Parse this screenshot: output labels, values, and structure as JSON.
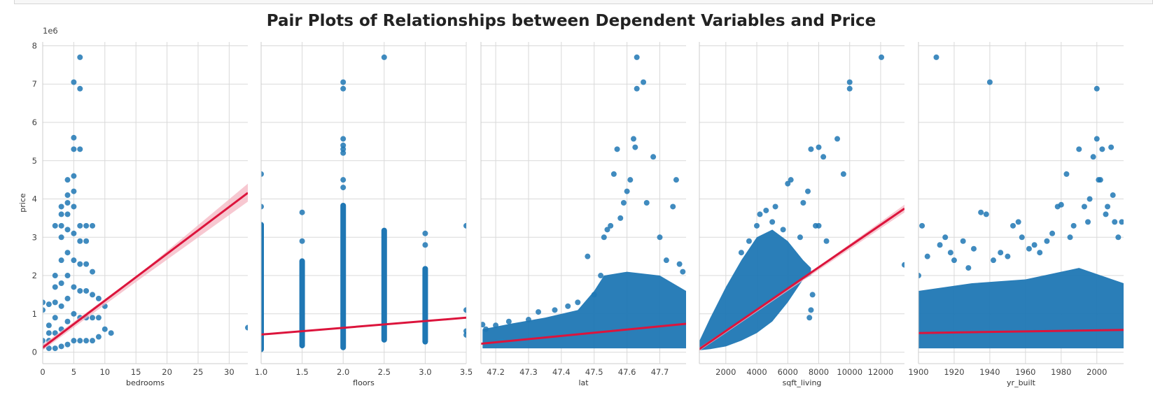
{
  "figure": {
    "title": "Pair Plots of Relationships between Dependent Variables and Price"
  },
  "colors": {
    "points": "#1f77b4",
    "regression_line": "#dc143c",
    "confidence_band": "#f4b6c2",
    "grid": "#d9d9d9",
    "background": "#ffffff"
  },
  "chart_data": [
    {
      "type": "scatter",
      "xlabel": "bedrooms",
      "ylabel": "price",
      "y_offset_label": "1e6",
      "xlim": [
        0,
        33
      ],
      "ylim": [
        -0.3,
        8.1
      ],
      "xticks": [
        0,
        5,
        10,
        15,
        20,
        25,
        30
      ],
      "xtick_labels": [
        "0",
        "5",
        "10",
        "15",
        "20",
        "25",
        "30"
      ],
      "yticks": [
        0,
        1,
        2,
        3,
        4,
        5,
        6,
        7,
        8
      ],
      "ytick_labels": [
        "0",
        "1",
        "2",
        "3",
        "4",
        "5",
        "6",
        "7",
        "8"
      ],
      "grid": true,
      "points": [
        [
          0,
          0.15
        ],
        [
          0,
          0.3
        ],
        [
          0,
          1.1
        ],
        [
          0,
          1.3
        ],
        [
          1,
          0.1
        ],
        [
          1,
          0.3
        ],
        [
          1,
          0.5
        ],
        [
          1,
          0.7
        ],
        [
          1,
          1.25
        ],
        [
          2,
          0.1
        ],
        [
          2,
          0.5
        ],
        [
          2,
          0.9
        ],
        [
          2,
          1.3
        ],
        [
          2,
          1.7
        ],
        [
          2,
          2.0
        ],
        [
          2,
          3.3
        ],
        [
          3,
          0.15
        ],
        [
          3,
          0.6
        ],
        [
          3,
          1.2
        ],
        [
          3,
          1.8
        ],
        [
          3,
          2.4
        ],
        [
          3,
          3.0
        ],
        [
          3,
          3.3
        ],
        [
          3,
          3.6
        ],
        [
          3,
          3.8
        ],
        [
          4,
          0.2
        ],
        [
          4,
          0.8
        ],
        [
          4,
          1.4
        ],
        [
          4,
          2.0
        ],
        [
          4,
          2.6
        ],
        [
          4,
          3.2
        ],
        [
          4,
          3.6
        ],
        [
          4,
          3.9
        ],
        [
          4,
          4.1
        ],
        [
          4,
          4.5
        ],
        [
          5,
          0.3
        ],
        [
          5,
          1.0
        ],
        [
          5,
          1.7
        ],
        [
          5,
          2.4
        ],
        [
          5,
          3.1
        ],
        [
          5,
          3.8
        ],
        [
          5,
          4.2
        ],
        [
          5,
          4.6
        ],
        [
          5,
          5.3
        ],
        [
          5,
          5.6
        ],
        [
          5,
          7.05
        ],
        [
          6,
          0.3
        ],
        [
          6,
          0.9
        ],
        [
          6,
          1.6
        ],
        [
          6,
          2.3
        ],
        [
          6,
          2.9
        ],
        [
          6,
          3.3
        ],
        [
          6,
          5.3
        ],
        [
          6,
          6.88
        ],
        [
          6,
          7.7
        ],
        [
          7,
          0.3
        ],
        [
          7,
          0.9
        ],
        [
          7,
          1.6
        ],
        [
          7,
          2.3
        ],
        [
          7,
          2.9
        ],
        [
          7,
          3.3
        ],
        [
          8,
          0.3
        ],
        [
          8,
          0.9
        ],
        [
          8,
          1.5
        ],
        [
          8,
          2.1
        ],
        [
          8,
          3.3
        ],
        [
          9,
          0.4
        ],
        [
          9,
          0.9
        ],
        [
          9,
          1.4
        ],
        [
          10,
          0.6
        ],
        [
          10,
          1.2
        ],
        [
          11,
          0.5
        ],
        [
          33,
          0.64
        ]
      ],
      "regression": {
        "x": [
          0,
          33
        ],
        "y": [
          0.12,
          4.16
        ]
      },
      "confidence_band": {
        "x": [
          0,
          16,
          33
        ],
        "y_low": [
          0.05,
          1.95,
          3.93
        ],
        "y_high": [
          0.2,
          2.1,
          4.4
        ]
      }
    },
    {
      "type": "scatter",
      "xlabel": "floors",
      "ylabel": "",
      "xlim": [
        1.0,
        3.5
      ],
      "ylim": [
        -0.3,
        8.1
      ],
      "xticks": [
        1.0,
        1.5,
        2.0,
        2.5,
        3.0,
        3.5
      ],
      "xtick_labels": [
        "1.0",
        "1.5",
        "2.0",
        "2.5",
        "3.0",
        "3.5"
      ],
      "yticks": [
        0,
        1,
        2,
        3,
        4,
        5,
        6,
        7,
        8
      ],
      "grid": true,
      "strips": [
        {
          "x": 1.0,
          "y_min": 0.0,
          "y_max": 3.4
        },
        {
          "x": 1.5,
          "y_min": 0.1,
          "y_max": 2.45
        },
        {
          "x": 2.0,
          "y_min": 0.05,
          "y_max": 3.9
        },
        {
          "x": 2.5,
          "y_min": 0.25,
          "y_max": 3.25
        },
        {
          "x": 3.0,
          "y_min": 0.2,
          "y_max": 2.25
        }
      ],
      "points": [
        [
          1.0,
          3.8
        ],
        [
          1.0,
          4.65
        ],
        [
          1.5,
          2.9
        ],
        [
          1.5,
          3.65
        ],
        [
          2.0,
          4.3
        ],
        [
          2.0,
          4.5
        ],
        [
          2.0,
          5.2
        ],
        [
          2.0,
          5.3
        ],
        [
          2.0,
          5.4
        ],
        [
          2.0,
          5.57
        ],
        [
          2.0,
          6.88
        ],
        [
          2.0,
          7.05
        ],
        [
          2.5,
          7.7
        ],
        [
          3.0,
          2.8
        ],
        [
          3.0,
          3.1
        ],
        [
          3.5,
          0.45
        ],
        [
          3.5,
          0.55
        ],
        [
          3.5,
          1.1
        ],
        [
          3.5,
          3.3
        ]
      ],
      "regression": {
        "x": [
          1.0,
          3.5
        ],
        "y": [
          0.46,
          0.9
        ]
      }
    },
    {
      "type": "scatter",
      "xlabel": "lat",
      "ylabel": "",
      "xlim": [
        47.155,
        47.78
      ],
      "ylim": [
        -0.3,
        8.1
      ],
      "xticks": [
        47.2,
        47.3,
        47.4,
        47.5,
        47.6,
        47.7
      ],
      "xtick_labels": [
        "47.2",
        "47.3",
        "47.4",
        "47.5",
        "47.6",
        "47.7"
      ],
      "yticks": [
        0,
        1,
        2,
        3,
        4,
        5,
        6,
        7,
        8
      ],
      "grid": true,
      "dense_band": [
        [
          47.16,
          0.1,
          0.6
        ],
        [
          47.25,
          0.1,
          0.75
        ],
        [
          47.35,
          0.1,
          0.9
        ],
        [
          47.45,
          0.1,
          1.1
        ],
        [
          47.5,
          0.1,
          1.6
        ],
        [
          47.53,
          0.1,
          2.0
        ],
        [
          47.6,
          0.1,
          2.1
        ],
        [
          47.7,
          0.1,
          2.0
        ],
        [
          47.78,
          0.1,
          1.6
        ]
      ],
      "points": [
        [
          47.16,
          0.72
        ],
        [
          47.17,
          0.6
        ],
        [
          47.2,
          0.7
        ],
        [
          47.24,
          0.8
        ],
        [
          47.3,
          0.85
        ],
        [
          47.33,
          1.05
        ],
        [
          47.38,
          1.1
        ],
        [
          47.42,
          1.2
        ],
        [
          47.45,
          1.3
        ],
        [
          47.48,
          2.5
        ],
        [
          47.5,
          1.5
        ],
        [
          47.52,
          2.0
        ],
        [
          47.53,
          3.0
        ],
        [
          47.54,
          3.2
        ],
        [
          47.55,
          3.3
        ],
        [
          47.56,
          4.65
        ],
        [
          47.57,
          5.3
        ],
        [
          47.58,
          3.5
        ],
        [
          47.59,
          3.9
        ],
        [
          47.6,
          4.2
        ],
        [
          47.61,
          4.5
        ],
        [
          47.62,
          5.57
        ],
        [
          47.625,
          5.35
        ],
        [
          47.63,
          6.88
        ],
        [
          47.63,
          7.7
        ],
        [
          47.65,
          7.05
        ],
        [
          47.66,
          3.9
        ],
        [
          47.68,
          5.1
        ],
        [
          47.7,
          3.0
        ],
        [
          47.72,
          2.4
        ],
        [
          47.74,
          3.8
        ],
        [
          47.75,
          4.5
        ],
        [
          47.76,
          2.3
        ],
        [
          47.77,
          2.1
        ]
      ],
      "regression": {
        "x": [
          47.155,
          47.78
        ],
        "y": [
          0.22,
          0.74
        ]
      }
    },
    {
      "type": "scatter",
      "xlabel": "sqft_living",
      "ylabel": "",
      "xlim": [
        290,
        13540
      ],
      "ylim": [
        -0.3,
        8.1
      ],
      "xticks": [
        2000,
        4000,
        6000,
        8000,
        10000,
        12000
      ],
      "xtick_labels": [
        "2000",
        "4000",
        "6000",
        "8000",
        "10000",
        "12000"
      ],
      "yticks": [
        0,
        1,
        2,
        3,
        4,
        5,
        6,
        7,
        8
      ],
      "grid": true,
      "dense_band": [
        [
          300,
          0.05,
          0.3
        ],
        [
          1000,
          0.08,
          0.9
        ],
        [
          2000,
          0.15,
          1.7
        ],
        [
          3000,
          0.3,
          2.4
        ],
        [
          4000,
          0.5,
          3.0
        ],
        [
          5000,
          0.8,
          3.2
        ],
        [
          6000,
          1.3,
          2.9
        ],
        [
          7000,
          1.9,
          2.4
        ],
        [
          7500,
          2.0,
          2.2
        ]
      ],
      "points": [
        [
          3000,
          2.6
        ],
        [
          3500,
          2.9
        ],
        [
          4000,
          3.3
        ],
        [
          4200,
          3.6
        ],
        [
          4600,
          3.7
        ],
        [
          5000,
          3.4
        ],
        [
          5200,
          3.8
        ],
        [
          5700,
          3.2
        ],
        [
          6000,
          4.4
        ],
        [
          6200,
          4.5
        ],
        [
          6800,
          3.0
        ],
        [
          7000,
          3.9
        ],
        [
          7300,
          4.2
        ],
        [
          7400,
          0.9
        ],
        [
          7500,
          1.1
        ],
        [
          7600,
          1.5
        ],
        [
          7800,
          3.3
        ],
        [
          8000,
          3.3
        ],
        [
          7500,
          5.3
        ],
        [
          8000,
          5.35
        ],
        [
          8300,
          5.1
        ],
        [
          8500,
          2.9
        ],
        [
          9200,
          5.57
        ],
        [
          9600,
          4.65
        ],
        [
          10000,
          6.88
        ],
        [
          10000,
          7.05
        ],
        [
          12050,
          7.7
        ],
        [
          13540,
          2.28
        ]
      ],
      "regression": {
        "x": [
          290,
          13540
        ],
        "y": [
          0.08,
          3.75
        ]
      },
      "confidence_band": {
        "x": [
          290,
          6000,
          13540
        ],
        "y_low": [
          0.03,
          1.6,
          3.65
        ],
        "y_high": [
          0.12,
          1.66,
          3.85
        ]
      }
    },
    {
      "type": "scatter",
      "xlabel": "yr_built",
      "ylabel": "",
      "xlim": [
        1900,
        2015
      ],
      "ylim": [
        -0.3,
        8.1
      ],
      "xticks": [
        1900,
        1920,
        1940,
        1960,
        1980,
        2000
      ],
      "xtick_labels": [
        "1900",
        "1920",
        "1940",
        "1960",
        "1980",
        "2000"
      ],
      "yticks": [
        0,
        1,
        2,
        3,
        4,
        5,
        6,
        7,
        8
      ],
      "grid": true,
      "dense_band": [
        [
          1900,
          0.1,
          1.6
        ],
        [
          1930,
          0.1,
          1.8
        ],
        [
          1960,
          0.1,
          1.9
        ],
        [
          1990,
          0.1,
          2.2
        ],
        [
          2015,
          0.1,
          1.8
        ]
      ],
      "points": [
        [
          1900,
          2.0
        ],
        [
          1902,
          3.3
        ],
        [
          1905,
          2.5
        ],
        [
          1910,
          7.7
        ],
        [
          1912,
          2.8
        ],
        [
          1915,
          3.0
        ],
        [
          1918,
          2.6
        ],
        [
          1920,
          2.4
        ],
        [
          1925,
          2.9
        ],
        [
          1928,
          2.2
        ],
        [
          1931,
          2.7
        ],
        [
          1935,
          3.65
        ],
        [
          1938,
          3.6
        ],
        [
          1940,
          7.05
        ],
        [
          1942,
          2.4
        ],
        [
          1946,
          2.6
        ],
        [
          1950,
          2.5
        ],
        [
          1953,
          3.3
        ],
        [
          1956,
          3.4
        ],
        [
          1958,
          3.0
        ],
        [
          1962,
          2.7
        ],
        [
          1965,
          2.8
        ],
        [
          1968,
          2.6
        ],
        [
          1972,
          2.9
        ],
        [
          1975,
          3.1
        ],
        [
          1978,
          3.8
        ],
        [
          1980,
          3.85
        ],
        [
          1983,
          4.65
        ],
        [
          1985,
          3.0
        ],
        [
          1987,
          3.3
        ],
        [
          1990,
          5.3
        ],
        [
          1993,
          3.8
        ],
        [
          1995,
          3.4
        ],
        [
          1996,
          4.0
        ],
        [
          1998,
          5.1
        ],
        [
          2000,
          5.57
        ],
        [
          2000,
          6.88
        ],
        [
          2001,
          4.5
        ],
        [
          2002,
          4.5
        ],
        [
          2003,
          5.3
        ],
        [
          2005,
          3.6
        ],
        [
          2006,
          3.8
        ],
        [
          2008,
          5.35
        ],
        [
          2009,
          4.1
        ],
        [
          2010,
          3.4
        ],
        [
          2012,
          3.0
        ],
        [
          2014,
          3.4
        ]
      ],
      "regression": {
        "x": [
          1900,
          2015
        ],
        "y": [
          0.5,
          0.58
        ]
      }
    }
  ]
}
